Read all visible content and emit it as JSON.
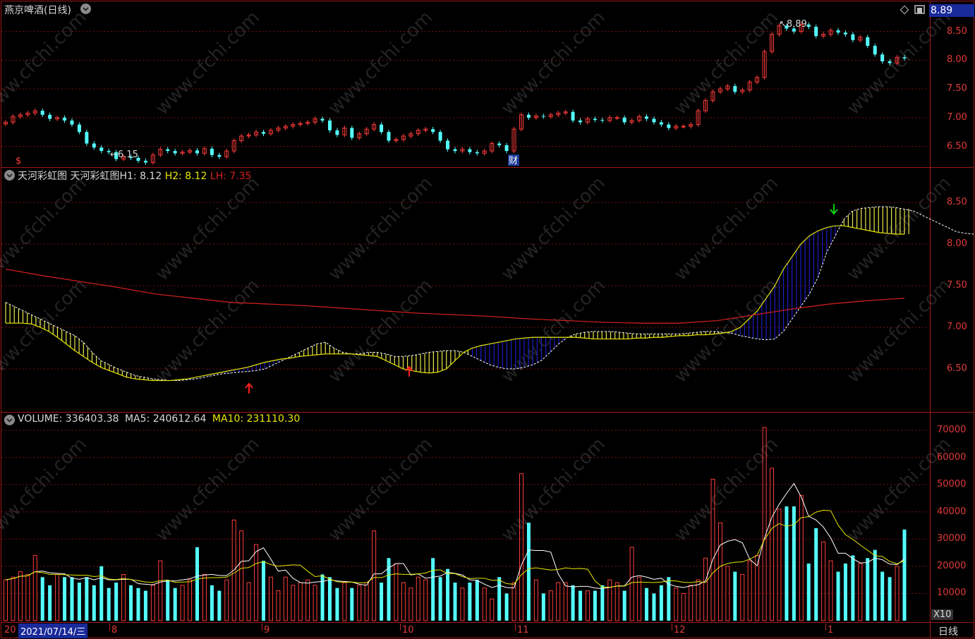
{
  "header": {
    "stock_title": "燕京啤酒(日线)",
    "price_box": "8.89"
  },
  "panel1": {
    "yaxis": [
      "8.50",
      "8.00",
      "7.50",
      "7.00",
      "6.50"
    ],
    "annot_high": "8.89",
    "annot_low": "6.15",
    "cai_badge": "财",
    "dollar_mark": "$"
  },
  "panel2": {
    "indicator_name": "天河彩虹图",
    "h1_label": "天河彩虹图H1:",
    "h1_value": "8.12",
    "h2_label": "H2:",
    "h2_value": "8.12",
    "lh_label": "LH:",
    "lh_value": "7.35",
    "yaxis": [
      "8.50",
      "8.00",
      "7.50",
      "7.00",
      "6.50"
    ]
  },
  "panel3": {
    "volume_label": "VOLUME:",
    "volume_value": "336403.38",
    "ma5_label": "MA5:",
    "ma5_value": "240612.64",
    "ma10_label": "MA10:",
    "ma10_value": "231110.30",
    "yaxis": [
      "70000",
      "60000",
      "50000",
      "40000",
      "30000",
      "20000",
      "10000"
    ],
    "multiplier": "X10"
  },
  "date_axis": {
    "year_prefix": "20",
    "current_date": "2021/07/14/三",
    "months": [
      "8",
      "9",
      "10",
      "11",
      "12",
      "1"
    ],
    "period_button": "日线"
  },
  "watermark": "www.cfchi.com",
  "colors": {
    "up": "#ff3c3c",
    "down": "#54ffff",
    "ma_yellow": "#e8e800",
    "ma_white": "#ffffff",
    "band_yellow": "#e8e84a",
    "band_blue": "#1c1cc8",
    "lh_red": "#c81e1e",
    "grid": "#7a1010"
  },
  "chart_data": {
    "type": "candlestick",
    "price_close": [
      6.92,
      7.02,
      7.05,
      7.08,
      7.12,
      7.05,
      6.98,
      7.0,
      6.95,
      6.88,
      6.75,
      6.55,
      6.48,
      6.42,
      6.4,
      6.28,
      6.32,
      6.3,
      6.25,
      6.22,
      6.35,
      6.45,
      6.42,
      6.38,
      6.4,
      6.43,
      6.38,
      6.46,
      6.35,
      6.32,
      6.42,
      6.6,
      6.68,
      6.7,
      6.75,
      6.72,
      6.78,
      6.82,
      6.85,
      6.88,
      6.9,
      6.92,
      6.98,
      6.95,
      6.78,
      6.7,
      6.82,
      6.65,
      6.72,
      6.8,
      6.88,
      6.75,
      6.6,
      6.62,
      6.68,
      6.72,
      6.78,
      6.8,
      6.75,
      6.6,
      6.45,
      6.42,
      6.45,
      6.4,
      6.38,
      6.42,
      6.55,
      6.52,
      6.42,
      6.8,
      7.05,
      7.0,
      7.03,
      7.02,
      7.05,
      7.08,
      7.1,
      6.95,
      6.92,
      6.98,
      6.96,
      6.95,
      7.0,
      7.0,
      6.92,
      6.95,
      7.02,
      6.98,
      6.92,
      6.88,
      6.82,
      6.85,
      6.85,
      6.88,
      7.12,
      7.3,
      7.45,
      7.5,
      7.55,
      7.45,
      7.48,
      7.62,
      7.7,
      8.15,
      8.45,
      8.6,
      8.55,
      8.5,
      8.62,
      8.58,
      8.42,
      8.45,
      8.52,
      8.48,
      8.45,
      8.35,
      8.4,
      8.25,
      8.1,
      7.98,
      7.95,
      8.05,
      8.03
    ],
    "volume": [
      15000,
      16000,
      18000,
      17000,
      24000,
      16000,
      13000,
      17000,
      16000,
      16000,
      14000,
      16000,
      13000,
      20000,
      12000,
      14000,
      17000,
      13000,
      12000,
      11000,
      13000,
      22000,
      15000,
      12000,
      13000,
      15000,
      27000,
      17000,
      13000,
      11000,
      15000,
      37000,
      33000,
      14000,
      28000,
      22000,
      16000,
      11000,
      16000,
      13000,
      14000,
      15000,
      13000,
      17000,
      16000,
      12000,
      14000,
      12000,
      13000,
      14000,
      33000,
      14000,
      23000,
      21000,
      14000,
      12000,
      16000,
      15000,
      23000,
      16000,
      19000,
      14000,
      12000,
      14000,
      15000,
      12000,
      8000,
      16000,
      10000,
      14000,
      54000,
      36000,
      15000,
      10000,
      11000,
      14000,
      14000,
      13000,
      11000,
      11000,
      11000,
      13000,
      15000,
      14000,
      11000,
      27000,
      16000,
      12000,
      10000,
      13000,
      16000,
      12000,
      10000,
      13000,
      15000,
      23000,
      52000,
      36000,
      20000,
      18000,
      17000,
      22000,
      24000,
      71000,
      56000,
      41000,
      42000,
      42000,
      46000,
      21000,
      34000,
      29000,
      22000,
      18000,
      21000,
      24000,
      21000,
      23000,
      26000,
      18000,
      16000,
      20000,
      33500
    ],
    "rainbow_h1": [
      7.3,
      7.25,
      7.2,
      7.15,
      7.1,
      7.05,
      7.0,
      6.95,
      6.9,
      6.82,
      6.7,
      6.6,
      6.55,
      6.5,
      6.46,
      6.42,
      6.4,
      6.38,
      6.37,
      6.36,
      6.36,
      6.37,
      6.38,
      6.4,
      6.42,
      6.44,
      6.45,
      6.46,
      6.47,
      6.48,
      6.5,
      6.55,
      6.6,
      6.65,
      6.7,
      6.75,
      6.8,
      6.82,
      6.75,
      6.7,
      6.68,
      6.68,
      6.7,
      6.7,
      6.68,
      6.65,
      6.65,
      6.66,
      6.68,
      6.7,
      6.71,
      6.72,
      6.72,
      6.7,
      6.65,
      6.6,
      6.55,
      6.52,
      6.5,
      6.5,
      6.52,
      6.55,
      6.6,
      6.7,
      6.8,
      6.88,
      6.92,
      6.94,
      6.95,
      6.95,
      6.95,
      6.94,
      6.93,
      6.92,
      6.92,
      6.92,
      6.92,
      6.92,
      6.92,
      6.93,
      6.94,
      6.95,
      6.95,
      6.94,
      6.93,
      6.9,
      6.88,
      6.86,
      6.85,
      6.86,
      6.95,
      7.1,
      7.25,
      7.4,
      7.6,
      7.9,
      8.1,
      8.3,
      8.4,
      8.43,
      8.44,
      8.45,
      8.45,
      8.44,
      8.42,
      8.4,
      8.35,
      8.3,
      8.25,
      8.2,
      8.15,
      8.13,
      8.12
    ],
    "rainbow_h2": [
      7.05,
      7.05,
      7.05,
      7.04,
      7.0,
      6.95,
      6.88,
      6.8,
      6.72,
      6.65,
      6.58,
      6.52,
      6.48,
      6.44,
      6.4,
      6.38,
      6.37,
      6.36,
      6.36,
      6.36,
      6.37,
      6.38,
      6.4,
      6.42,
      6.44,
      6.46,
      6.48,
      6.5,
      6.52,
      6.55,
      6.58,
      6.6,
      6.62,
      6.63,
      6.65,
      6.66,
      6.67,
      6.68,
      6.68,
      6.68,
      6.68,
      6.67,
      6.66,
      6.65,
      6.6,
      6.55,
      6.5,
      6.48,
      6.46,
      6.45,
      6.46,
      6.5,
      6.6,
      6.7,
      6.75,
      6.78,
      6.8,
      6.82,
      6.84,
      6.86,
      6.87,
      6.88,
      6.88,
      6.88,
      6.88,
      6.88,
      6.88,
      6.87,
      6.86,
      6.86,
      6.86,
      6.86,
      6.86,
      6.87,
      6.87,
      6.88,
      6.88,
      6.89,
      6.9,
      6.9,
      6.91,
      6.91,
      6.92,
      6.93,
      6.95,
      7.0,
      7.1,
      7.2,
      7.35,
      7.5,
      7.7,
      7.85,
      8.0,
      8.1,
      8.16,
      8.2,
      8.22,
      8.22,
      8.2,
      8.18,
      8.16,
      8.14,
      8.13,
      8.12,
      8.12
    ],
    "rainbow_lh": [
      7.7,
      7.62,
      7.55,
      7.48,
      7.4,
      7.35,
      7.3,
      7.28,
      7.26,
      7.23,
      7.2,
      7.17,
      7.15,
      7.13,
      7.1,
      7.08,
      7.06,
      7.05,
      7.05,
      7.08,
      7.15,
      7.22,
      7.28,
      7.32,
      7.35
    ],
    "buy_arrows": 2,
    "sell_arrows": 1
  }
}
